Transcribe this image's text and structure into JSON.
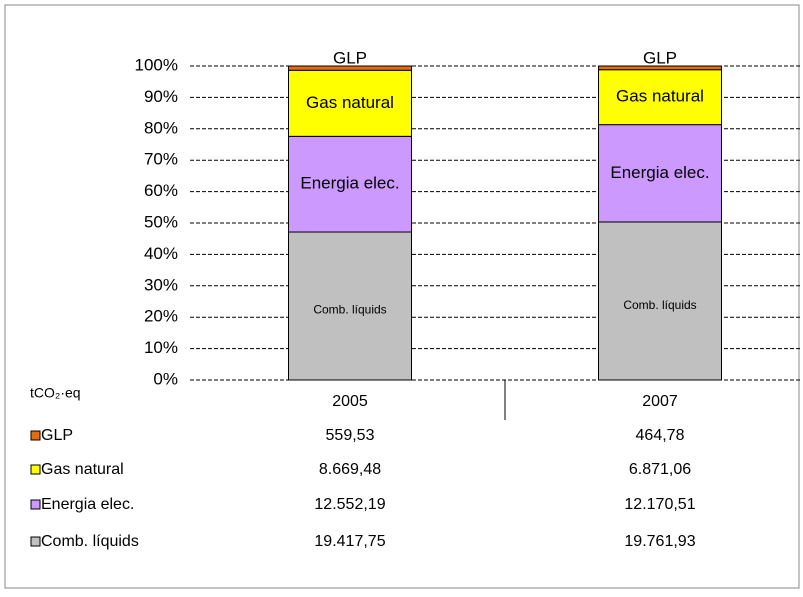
{
  "chart_data": {
    "type": "stacked_percent_bar",
    "categories": [
      "2005",
      "2007"
    ],
    "table_unit": "tCO₂·eq",
    "ylim": [
      0,
      100
    ],
    "yticks": [
      {
        "value": 0,
        "label": "0%"
      },
      {
        "value": 10,
        "label": "10%"
      },
      {
        "value": 20,
        "label": "20%"
      },
      {
        "value": 30,
        "label": "30%"
      },
      {
        "value": 40,
        "label": "40%"
      },
      {
        "value": 50,
        "label": "50%"
      },
      {
        "value": 60,
        "label": "60%"
      },
      {
        "value": 70,
        "label": "70%"
      },
      {
        "value": 80,
        "label": "80%"
      },
      {
        "value": 90,
        "label": "90%"
      },
      {
        "value": 100,
        "label": "100%"
      }
    ],
    "grid": true,
    "series": [
      {
        "name": "Comb. líquids",
        "color": "#c0c0c0",
        "values": [
          19417.75,
          19761.93
        ],
        "value_labels": [
          "19.417,75",
          "19.761,93"
        ]
      },
      {
        "name": "Energia elec.",
        "color": "#cc99ff",
        "values": [
          12552.19,
          12170.51
        ],
        "value_labels": [
          "12.552,19",
          "12.170,51"
        ]
      },
      {
        "name": "Gas natural",
        "color": "#ffff00",
        "values": [
          8669.48,
          6871.06
        ],
        "value_labels": [
          "8.669,48",
          "6.871,06"
        ]
      },
      {
        "name": "GLP",
        "color": "#e46c0a",
        "values": [
          559.53,
          464.78
        ],
        "value_labels": [
          "559,53",
          "464,78"
        ]
      }
    ]
  }
}
